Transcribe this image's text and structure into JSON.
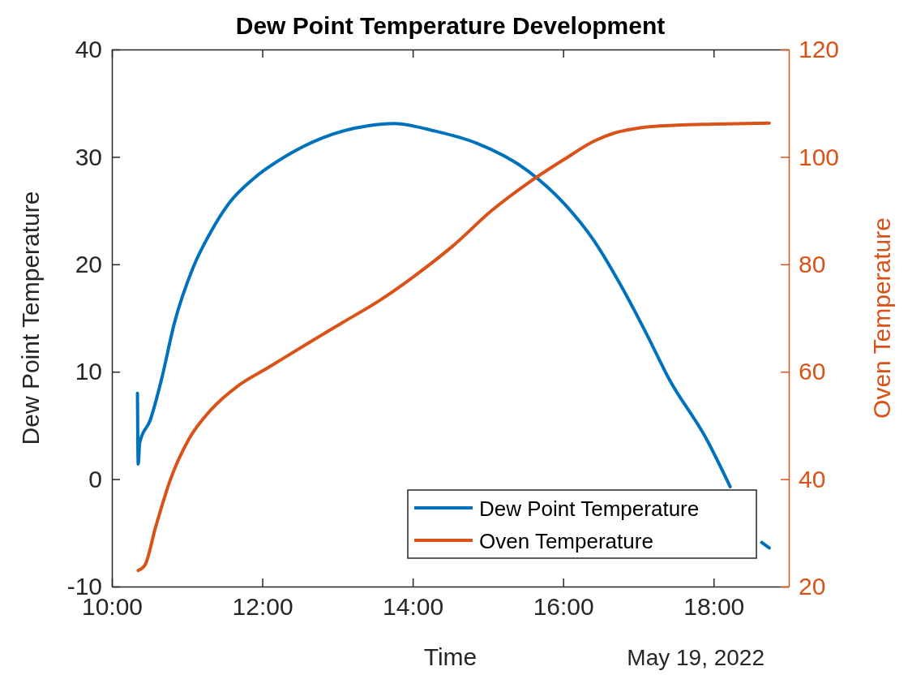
{
  "chart_data": {
    "type": "line",
    "title": "Dew Point Temperature Development",
    "xlabel": "Time",
    "ylabel": "Dew Point Temperature",
    "y2label": "Oven Temperature",
    "annotations": [
      "May 19, 2022"
    ],
    "xlim": [
      10,
      19
    ],
    "xticks": [
      {
        "value": 10,
        "label": "10:00"
      },
      {
        "value": 12,
        "label": "12:00"
      },
      {
        "value": 14,
        "label": "14:00"
      },
      {
        "value": 16,
        "label": "16:00"
      },
      {
        "value": 18,
        "label": "18:00"
      }
    ],
    "ylim": [
      -10,
      40
    ],
    "yticks": [
      -10,
      0,
      10,
      20,
      30,
      40
    ],
    "y2lim": [
      20,
      120
    ],
    "y2ticks": [
      20,
      40,
      60,
      80,
      100,
      120
    ],
    "grid": false,
    "legend": "bottom right",
    "line_style": "solid",
    "series": [
      {
        "name": "Dew Point Temperature",
        "color": "#0072bd",
        "x": [
          10.34,
          10.35,
          10.37,
          10.51,
          10.66,
          10.83,
          11.08,
          11.33,
          11.57,
          11.87,
          12.32,
          12.81,
          13.41,
          13.75,
          14.3,
          14.84,
          15.53,
          16.02,
          16.4,
          16.77,
          17.11,
          17.41,
          17.9,
          18.22,
          18.4,
          18.64,
          18.74
        ],
        "values": [
          8.0,
          1.4,
          3.4,
          5.5,
          9.3,
          14.5,
          19.7,
          23.2,
          25.8,
          27.9,
          30.1,
          31.8,
          32.9,
          33.1,
          32.4,
          31.3,
          28.7,
          25.6,
          22.3,
          18.0,
          13.5,
          9.3,
          3.8,
          -0.7,
          null,
          -5.9,
          -6.4
        ]
      },
      {
        "name": "Oven Temperature",
        "color": "#d95319",
        "axis": "y2",
        "x": [
          10.35,
          10.44,
          10.58,
          10.78,
          11.03,
          11.33,
          11.67,
          12.07,
          12.56,
          13.06,
          13.55,
          14.05,
          14.54,
          15.04,
          15.53,
          16.02,
          16.42,
          16.67,
          17.01,
          17.51,
          18.0,
          18.74
        ],
        "values": [
          23.0,
          24.0,
          31.0,
          40.0,
          47.6,
          53.1,
          57.3,
          60.7,
          64.9,
          69.1,
          73.2,
          78.1,
          83.5,
          89.9,
          95.1,
          99.6,
          103.0,
          104.4,
          105.4,
          105.9,
          106.1,
          106.3
        ]
      }
    ]
  }
}
